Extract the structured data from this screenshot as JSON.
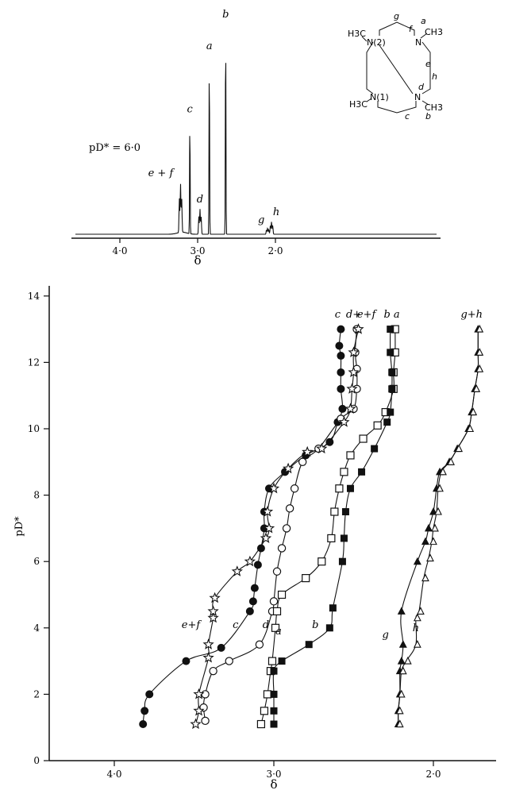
{
  "spectrum": {
    "condition_label": "pD* = 6·0",
    "x_axis": {
      "label": "δ",
      "reversed": true,
      "range": [
        4.6,
        1.0
      ],
      "ticks": [
        "4·0",
        "3·0",
        "2·0"
      ]
    },
    "peaks": [
      {
        "label": "e + f",
        "delta": 3.22,
        "intensity": 0.23,
        "type": "multiplet"
      },
      {
        "label": "c",
        "delta": 3.1,
        "intensity": 0.55,
        "type": "singlet"
      },
      {
        "label": "d",
        "delta": 2.97,
        "intensity": 0.12,
        "type": "multiplet"
      },
      {
        "label": "a",
        "delta": 2.85,
        "intensity": 0.85,
        "type": "singlet"
      },
      {
        "label": "b",
        "delta": 2.64,
        "intensity": 1.0,
        "type": "singlet"
      },
      {
        "label": "g",
        "delta": 2.1,
        "intensity": 0.03,
        "type": "multiplet"
      },
      {
        "label": "h",
        "delta": 2.05,
        "intensity": 0.06,
        "type": "multiplet"
      }
    ]
  },
  "structure": {
    "labels": [
      "H3C",
      "N(2)",
      "N",
      "CH3",
      "H3C",
      "N(1)",
      "N",
      "CH3",
      "a",
      "b",
      "c",
      "d",
      "e",
      "f",
      "g",
      "h"
    ]
  },
  "chart_data": {
    "type": "scatter",
    "xlabel": "δ",
    "ylabel": "pD*",
    "x_reversed": true,
    "xlim": [
      4.4,
      1.55
    ],
    "ylim": [
      0,
      14
    ],
    "x_ticks": [
      "4·0",
      "3·0",
      "2·0"
    ],
    "y_ticks": [
      "0",
      "2",
      "4",
      "6",
      "8",
      "10",
      "12",
      "14"
    ],
    "top_labels": [
      "c",
      "d+",
      "e+f",
      "b",
      "a",
      "g+h"
    ],
    "series": [
      {
        "name": "c",
        "marker": "filled-circle",
        "points": [
          [
            3.82,
            1.1
          ],
          [
            3.81,
            1.5
          ],
          [
            3.78,
            2.0
          ],
          [
            3.55,
            3.0
          ],
          [
            3.33,
            3.4
          ],
          [
            3.15,
            4.5
          ],
          [
            3.13,
            4.8
          ],
          [
            3.12,
            5.2
          ],
          [
            3.1,
            5.9
          ],
          [
            3.08,
            6.4
          ],
          [
            3.06,
            7.0
          ],
          [
            3.06,
            7.5
          ],
          [
            3.03,
            8.2
          ],
          [
            2.93,
            8.7
          ],
          [
            2.8,
            9.2
          ],
          [
            2.65,
            9.6
          ],
          [
            2.6,
            10.2
          ],
          [
            2.57,
            10.6
          ],
          [
            2.58,
            11.2
          ],
          [
            2.58,
            11.7
          ],
          [
            2.58,
            12.2
          ],
          [
            2.59,
            12.5
          ],
          [
            2.58,
            13.0
          ]
        ]
      },
      {
        "name": "d",
        "marker": "open-circle",
        "points": [
          [
            3.43,
            1.2
          ],
          [
            3.44,
            1.6
          ],
          [
            3.43,
            2.0
          ],
          [
            3.38,
            2.7
          ],
          [
            3.28,
            3.0
          ],
          [
            3.09,
            3.5
          ],
          [
            3.01,
            4.5
          ],
          [
            3.0,
            4.8
          ],
          [
            2.98,
            5.7
          ],
          [
            2.95,
            6.4
          ],
          [
            2.92,
            7.0
          ],
          [
            2.9,
            7.6
          ],
          [
            2.87,
            8.2
          ],
          [
            2.82,
            9.0
          ],
          [
            2.72,
            9.4
          ],
          [
            2.58,
            10.3
          ],
          [
            2.5,
            10.6
          ],
          [
            2.48,
            11.2
          ],
          [
            2.48,
            11.8
          ],
          [
            2.49,
            12.3
          ],
          [
            2.48,
            13.0
          ]
        ]
      },
      {
        "name": "e+f",
        "marker": "star",
        "points": [
          [
            3.49,
            1.1
          ],
          [
            3.47,
            1.5
          ],
          [
            3.47,
            2.0
          ],
          [
            3.41,
            3.1
          ],
          [
            3.41,
            3.5
          ],
          [
            3.38,
            4.3
          ],
          [
            3.38,
            4.5
          ],
          [
            3.37,
            4.9
          ],
          [
            3.23,
            5.7
          ],
          [
            3.15,
            6.0
          ],
          [
            3.05,
            6.7
          ],
          [
            3.03,
            7.0
          ],
          [
            3.04,
            7.5
          ],
          [
            3.0,
            8.2
          ],
          [
            2.91,
            8.8
          ],
          [
            2.79,
            9.3
          ],
          [
            2.7,
            9.4
          ],
          [
            2.56,
            10.2
          ],
          [
            2.52,
            10.6
          ],
          [
            2.51,
            11.2
          ],
          [
            2.5,
            11.7
          ],
          [
            2.5,
            12.3
          ],
          [
            2.47,
            13.0
          ]
        ]
      },
      {
        "name": "a",
        "marker": "open-square",
        "points": [
          [
            3.08,
            1.1
          ],
          [
            3.06,
            1.5
          ],
          [
            3.04,
            2.0
          ],
          [
            3.02,
            2.7
          ],
          [
            3.01,
            3.0
          ],
          [
            2.99,
            4.0
          ],
          [
            2.98,
            4.5
          ],
          [
            2.95,
            5.0
          ],
          [
            2.8,
            5.5
          ],
          [
            2.7,
            6.0
          ],
          [
            2.64,
            6.7
          ],
          [
            2.62,
            7.5
          ],
          [
            2.59,
            8.2
          ],
          [
            2.56,
            8.7
          ],
          [
            2.52,
            9.2
          ],
          [
            2.44,
            9.7
          ],
          [
            2.35,
            10.1
          ],
          [
            2.3,
            10.5
          ],
          [
            2.25,
            11.2
          ],
          [
            2.25,
            11.7
          ],
          [
            2.24,
            12.3
          ],
          [
            2.24,
            13.0
          ]
        ]
      },
      {
        "name": "b",
        "marker": "filled-square",
        "points": [
          [
            3.0,
            1.1
          ],
          [
            3.0,
            1.5
          ],
          [
            3.0,
            2.0
          ],
          [
            3.0,
            2.7
          ],
          [
            2.95,
            3.0
          ],
          [
            2.78,
            3.5
          ],
          [
            2.65,
            4.0
          ],
          [
            2.63,
            4.6
          ],
          [
            2.57,
            6.0
          ],
          [
            2.56,
            6.7
          ],
          [
            2.55,
            7.5
          ],
          [
            2.52,
            8.2
          ],
          [
            2.45,
            8.7
          ],
          [
            2.37,
            9.4
          ],
          [
            2.29,
            10.2
          ],
          [
            2.27,
            10.5
          ],
          [
            2.26,
            11.2
          ],
          [
            2.26,
            11.7
          ],
          [
            2.27,
            12.3
          ],
          [
            2.27,
            13.0
          ]
        ]
      },
      {
        "name": "g",
        "marker": "filled-triangle",
        "points": [
          [
            2.22,
            1.1
          ],
          [
            2.22,
            1.5
          ],
          [
            2.21,
            2.0
          ],
          [
            2.21,
            2.7
          ],
          [
            2.2,
            3.0
          ],
          [
            2.19,
            3.5
          ],
          [
            2.2,
            4.5
          ],
          [
            2.1,
            6.0
          ],
          [
            2.05,
            6.6
          ],
          [
            2.03,
            7.0
          ],
          [
            2.0,
            7.5
          ],
          [
            1.98,
            8.2
          ],
          [
            1.96,
            8.7
          ],
          [
            1.9,
            9.0
          ],
          [
            1.85,
            9.4
          ],
          [
            1.78,
            10.0
          ],
          [
            1.76,
            10.5
          ],
          [
            1.74,
            11.2
          ],
          [
            1.72,
            11.8
          ],
          [
            1.72,
            12.3
          ],
          [
            1.72,
            13.0
          ]
        ]
      },
      {
        "name": "h",
        "marker": "open-triangle",
        "points": [
          [
            2.22,
            1.1
          ],
          [
            2.22,
            1.5
          ],
          [
            2.21,
            2.0
          ],
          [
            2.2,
            2.7
          ],
          [
            2.17,
            3.0
          ],
          [
            2.11,
            3.5
          ],
          [
            2.11,
            4.3
          ],
          [
            2.09,
            4.5
          ],
          [
            2.06,
            5.5
          ],
          [
            2.03,
            6.1
          ],
          [
            2.01,
            6.6
          ],
          [
            2.0,
            7.0
          ],
          [
            1.98,
            7.5
          ],
          [
            1.97,
            8.2
          ],
          [
            1.95,
            8.7
          ],
          [
            1.9,
            9.0
          ],
          [
            1.85,
            9.4
          ],
          [
            1.78,
            10.0
          ],
          [
            1.76,
            10.5
          ],
          [
            1.74,
            11.2
          ],
          [
            1.72,
            11.8
          ],
          [
            1.72,
            12.3
          ],
          [
            1.72,
            13.0
          ]
        ]
      }
    ],
    "curve_labels": [
      {
        "text": "e+f",
        "x": 3.52,
        "y": 4.0
      },
      {
        "text": "c",
        "x": 3.24,
        "y": 4.0
      },
      {
        "text": "d",
        "x": 3.05,
        "y": 4.0
      },
      {
        "text": "a",
        "x": 2.97,
        "y": 3.8
      },
      {
        "text": "b",
        "x": 2.74,
        "y": 4.0
      },
      {
        "text": "g",
        "x": 2.3,
        "y": 3.7
      },
      {
        "text": "h",
        "x": 2.11,
        "y": 3.9
      }
    ]
  }
}
